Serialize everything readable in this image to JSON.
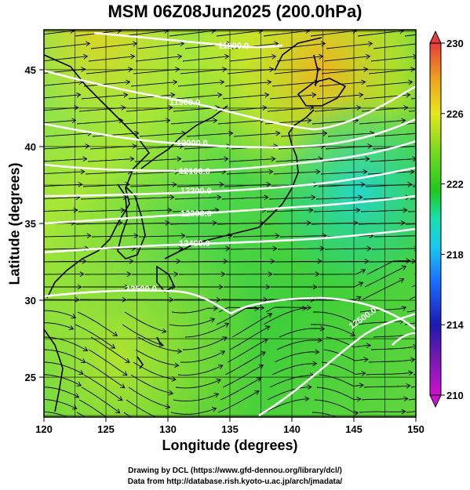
{
  "title": "MSM 06Z08Jun2025 (200.0hPa)",
  "x_axis": {
    "label": "Longitude (degrees)",
    "ticks": [
      "120",
      "125",
      "130",
      "135",
      "140",
      "145",
      "150"
    ],
    "range": [
      120,
      150
    ]
  },
  "y_axis": {
    "label": "Latitude  (degrees)",
    "ticks": [
      "25",
      "30",
      "35",
      "40",
      "45"
    ],
    "range": [
      22.4,
      47.6
    ]
  },
  "colorbar": {
    "ticks": [
      "230",
      "226",
      "222",
      "218",
      "214",
      "210"
    ],
    "range": [
      210,
      230
    ],
    "colors": [
      "#cc11cc",
      "#1a1ab0",
      "#1a8cff",
      "#19e0e0",
      "#1ec81e",
      "#9ee61e",
      "#e6e61e",
      "#f0a020",
      "#e63c3c"
    ]
  },
  "contours": {
    "labels": [
      "11900.0",
      "11800.0",
      "11900.0",
      "12000.0",
      "12100.0",
      "12200.0",
      "12300.0",
      "12400.0",
      "12500.0",
      "12500.0"
    ],
    "line_color": "#ffffff"
  },
  "credits": {
    "line1": "Drawing by DCL (https://www.gfd-dennou.org/library/dcl/)",
    "line2": "Data from http://database.rish.kyoto-u.ac.jp/arch/jmadata/"
  }
}
